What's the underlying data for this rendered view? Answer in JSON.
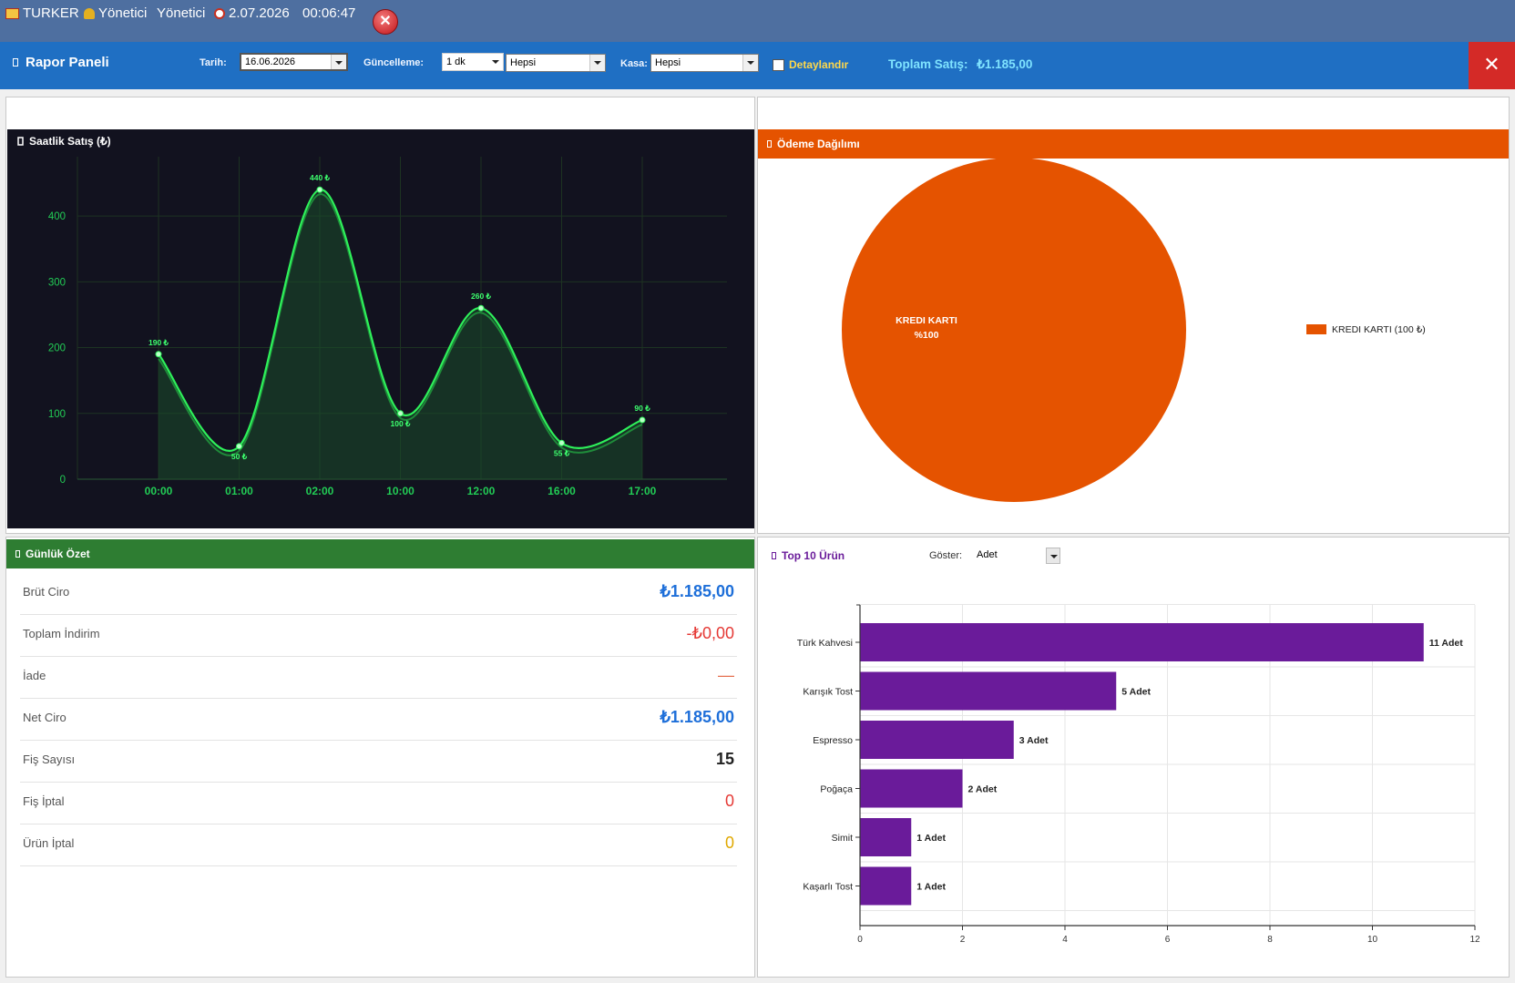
{
  "titlebar": {
    "app": "TURKER",
    "user1": "Yönetici",
    "user2": "Yönetici",
    "date": "2.07.2026",
    "time": "00:06:47"
  },
  "toolbar": {
    "title": "Rapor Paneli",
    "date_label": "Tarih:",
    "date_value": "16.06.2026",
    "update_label": "Güncelleme:",
    "update_value": "1 dk",
    "filter_value": "Hepsi",
    "register_label": "Kasa:",
    "register_value": "Hepsi",
    "detail_label": "Detaylandır",
    "total_label": "Toplam Satış:",
    "total_value": "₺1.185,00"
  },
  "hourly": {
    "title": "Saatlik Satış (₺)"
  },
  "payment": {
    "title": "Ödeme Dağılımı",
    "slice_label": "KREDI KARTI",
    "slice_pct": "%100",
    "legend": "KREDI KARTI  (100 ₺)"
  },
  "summary": {
    "title": "Günlük Özet",
    "rows": [
      {
        "label": "Brüt Ciro",
        "value": "₺1.185,00"
      },
      {
        "label": "Toplam İndirim",
        "value": "-₺0,00"
      },
      {
        "label": "İade",
        "value": "—"
      },
      {
        "label": "Net Ciro",
        "value": "₺1.185,00"
      },
      {
        "label": "Fiş Sayısı",
        "value": "15"
      },
      {
        "label": "Fiş İptal",
        "value": "0"
      },
      {
        "label": "Ürün İptal",
        "value": "0"
      }
    ]
  },
  "top10": {
    "title": "Top 10 Ürün",
    "show_label": "Göster:",
    "show_value": "Adet"
  },
  "colors": {
    "accent": "#1f6fc3",
    "payment": "#e55300",
    "summary": "#2e7d32",
    "bars": "#6a1b9a",
    "line": "#22e04a",
    "chart_bg": "#12121f"
  },
  "chart_data": [
    {
      "type": "area",
      "title": "Saatlik Satış (₺)",
      "categories": [
        "00:00",
        "01:00",
        "02:00",
        "10:00",
        "12:00",
        "16:00",
        "17:00"
      ],
      "values": [
        190,
        50,
        440,
        100,
        260,
        55,
        90
      ],
      "data_labels": [
        "190 ₺",
        "50 ₺",
        "440 ₺",
        "100 ₺",
        "260 ₺",
        "55 ₺",
        "90 ₺"
      ],
      "yticks": [
        "0",
        "100",
        "200",
        "300",
        "400"
      ],
      "ylim": [
        0,
        490
      ],
      "grid": true
    },
    {
      "type": "pie",
      "title": "Ödeme Dağılımı",
      "labels": [
        "KREDI KARTI"
      ],
      "values": [
        100
      ],
      "legend": "right"
    },
    {
      "type": "bar",
      "orientation": "horizontal",
      "title": "Top 10 Ürün",
      "categories": [
        "Türk Kahvesi",
        "Karışık Tost",
        "Espresso",
        "Poğaça",
        "Simit",
        "Kaşarlı Tost"
      ],
      "values": [
        11,
        5,
        3,
        2,
        1,
        1
      ],
      "data_labels": [
        "11 Adet",
        "5 Adet",
        "3 Adet",
        "2 Adet",
        "1 Adet",
        "1 Adet"
      ],
      "xticks": [
        "0",
        "2",
        "4",
        "6",
        "8",
        "10",
        "12"
      ],
      "xlim": [
        0,
        12
      ],
      "grid": true
    }
  ]
}
